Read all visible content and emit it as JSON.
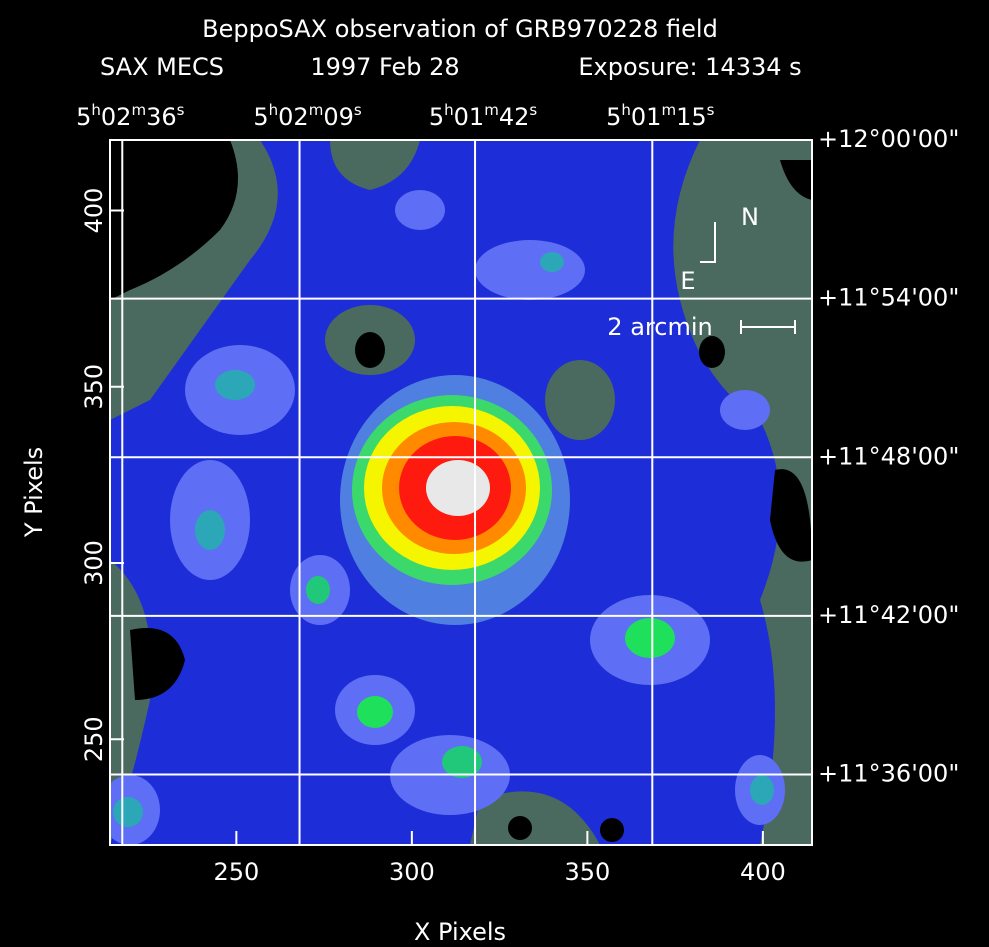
{
  "chart_data": {
    "type": "image",
    "title": "BeppoSAX observation of GRB970228 field",
    "subtitle": [
      "SAX MECS",
      "1997 Feb 28",
      "Exposure: 14334 s"
    ],
    "xlabel": "X Pixels",
    "ylabel": "Y Pixels",
    "xlim": [
      214,
      414
    ],
    "ylim": [
      220,
      420
    ],
    "xticks": [
      250,
      300,
      350,
      400
    ],
    "yticks": [
      250,
      300,
      350,
      400
    ],
    "ra_ticks": [
      {
        "value": 217.5,
        "label": "5h02m36s"
      },
      {
        "value": 268,
        "label": "5h02m09s"
      },
      {
        "value": 318,
        "label": "5h01m42s"
      },
      {
        "value": 368.5,
        "label": "5h01m15s"
      }
    ],
    "dec_ticks": [
      {
        "value": 420,
        "label": "+12°00'00\""
      },
      {
        "value": 375,
        "label": "+11°54'00\""
      },
      {
        "value": 330,
        "label": "+11°48'00\""
      },
      {
        "value": 285,
        "label": "+11°42'00\""
      },
      {
        "value": 240,
        "label": "+11°36'00\""
      }
    ],
    "annotations": {
      "north": "N",
      "east": "E",
      "scale": "2 arcmin"
    },
    "grid": true
  }
}
